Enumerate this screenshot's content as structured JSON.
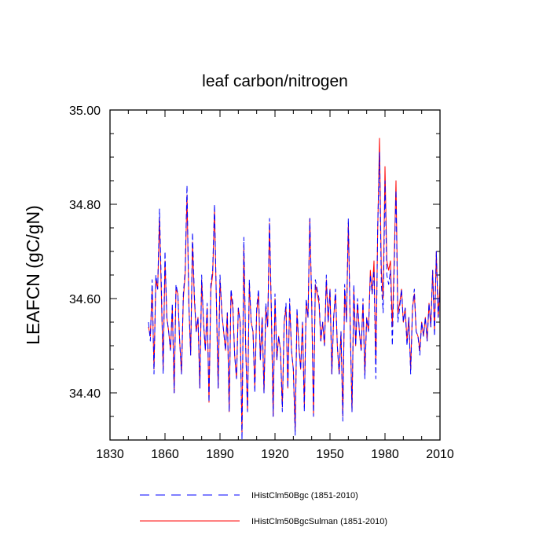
{
  "chart_data": {
    "type": "line",
    "title": "leaf carbon/nitrogen",
    "xlabel": "",
    "ylabel": "LEAFCN  (gC/gN)",
    "xlim": [
      1830,
      2010
    ],
    "ylim": [
      34.3,
      35.0
    ],
    "xticks": [
      1830,
      1860,
      1890,
      1920,
      1950,
      1980,
      2010
    ],
    "yticks": [
      34.4,
      34.6,
      34.8,
      35.0
    ],
    "ytick_labels": [
      "34.40",
      "34.60",
      "34.80",
      "35.00"
    ],
    "grid": false,
    "legend_position": "bottom",
    "x_start": 1851,
    "x_end": 2010,
    "series": [
      {
        "name": "IHistClm50Bgc (1851-2010)",
        "color": "#0000ff",
        "dash": "dashed",
        "values": [
          34.55,
          34.51,
          34.64,
          34.44,
          34.65,
          34.62,
          34.79,
          34.63,
          34.44,
          34.7,
          34.56,
          34.53,
          34.49,
          34.59,
          34.4,
          34.63,
          34.61,
          34.51,
          34.44,
          34.61,
          34.66,
          34.84,
          34.59,
          34.48,
          34.74,
          34.61,
          34.53,
          34.56,
          34.41,
          34.65,
          34.55,
          34.49,
          34.59,
          34.38,
          34.63,
          34.66,
          34.8,
          34.6,
          34.41,
          34.65,
          34.57,
          34.53,
          34.49,
          34.57,
          34.36,
          34.62,
          34.59,
          34.48,
          34.43,
          34.58,
          34.55,
          34.3,
          34.73,
          34.5,
          34.36,
          34.64,
          34.55,
          34.53,
          34.4,
          34.58,
          34.62,
          34.47,
          34.56,
          34.4,
          34.59,
          34.54,
          34.77,
          34.58,
          34.35,
          34.61,
          34.47,
          34.52,
          34.49,
          34.36,
          34.55,
          34.59,
          34.41,
          34.6,
          34.49,
          34.45,
          34.31,
          34.58,
          34.5,
          34.45,
          34.55,
          34.36,
          34.6,
          34.56,
          34.77,
          34.6,
          34.35,
          34.64,
          34.62,
          34.6,
          34.51,
          34.55,
          34.5,
          34.65,
          34.55,
          34.62,
          34.44,
          34.56,
          34.62,
          34.5,
          34.44,
          34.53,
          34.34,
          34.63,
          34.55,
          34.77,
          34.55,
          34.36,
          34.63,
          34.5,
          34.6,
          34.53,
          34.49,
          34.6,
          34.43,
          34.56,
          34.53,
          34.65,
          34.61,
          34.66,
          34.43,
          34.75,
          34.91,
          34.63,
          34.57,
          34.85,
          34.65,
          34.63,
          34.66,
          34.5,
          34.66,
          34.83,
          34.55,
          34.58,
          34.62,
          34.55,
          34.58,
          34.5,
          34.56,
          34.44,
          34.58,
          34.62,
          34.53,
          34.52,
          34.48,
          34.55,
          34.52,
          34.56,
          34.51,
          34.59,
          34.54,
          34.66,
          34.52,
          34.7,
          34.56,
          34.62
        ]
      },
      {
        "name": "IHistClm50BgcSulman (1851-2010)",
        "color": "#ff0000",
        "dash": "solid",
        "values": [
          34.54,
          34.52,
          34.62,
          34.45,
          34.64,
          34.62,
          34.77,
          34.61,
          34.45,
          34.68,
          34.56,
          34.53,
          34.49,
          34.58,
          34.4,
          34.62,
          34.61,
          34.51,
          34.44,
          34.6,
          34.65,
          34.82,
          34.59,
          34.48,
          34.72,
          34.6,
          34.53,
          34.56,
          34.41,
          34.64,
          34.55,
          34.49,
          34.58,
          34.38,
          34.62,
          34.65,
          34.79,
          34.6,
          34.41,
          34.64,
          34.57,
          34.53,
          34.49,
          34.57,
          34.36,
          34.61,
          34.58,
          34.48,
          34.43,
          34.58,
          34.55,
          34.31,
          34.71,
          34.5,
          34.36,
          34.63,
          34.55,
          34.53,
          34.41,
          34.57,
          34.61,
          34.47,
          34.56,
          34.4,
          34.58,
          34.54,
          34.76,
          34.57,
          34.35,
          34.6,
          34.47,
          34.52,
          34.49,
          34.37,
          34.55,
          34.58,
          34.41,
          34.59,
          34.49,
          34.45,
          34.32,
          34.57,
          34.5,
          34.45,
          34.55,
          34.37,
          34.59,
          34.56,
          34.77,
          34.59,
          34.35,
          34.63,
          34.61,
          34.59,
          34.51,
          34.55,
          34.5,
          34.64,
          34.55,
          34.62,
          34.44,
          34.56,
          34.61,
          34.5,
          34.44,
          34.53,
          34.35,
          34.62,
          34.55,
          34.76,
          34.55,
          34.36,
          34.62,
          34.5,
          34.59,
          34.53,
          34.49,
          34.59,
          34.44,
          34.56,
          34.53,
          34.66,
          34.61,
          34.68,
          34.46,
          34.74,
          34.94,
          34.66,
          34.6,
          34.88,
          34.68,
          34.66,
          34.68,
          34.54,
          34.68,
          34.85,
          34.57,
          34.59,
          34.62,
          34.55,
          34.58,
          34.51,
          34.56,
          34.45,
          34.58,
          34.61,
          34.53,
          34.52,
          34.49,
          34.55,
          34.52,
          34.56,
          34.51,
          34.59,
          34.54,
          34.66,
          34.53,
          34.7,
          34.56,
          34.63
        ]
      }
    ]
  }
}
